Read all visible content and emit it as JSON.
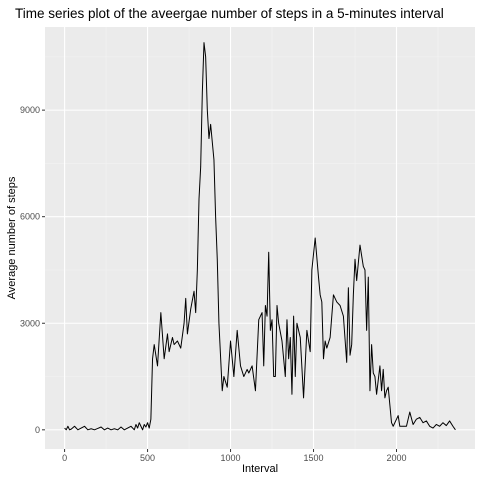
{
  "chart_data": {
    "type": "line",
    "title": "Time series plot of the aveergae number of steps in a 5-minutes interval",
    "xlabel": "Interval",
    "ylabel": "Average number of steps",
    "xlim": [
      -118,
      2473
    ],
    "ylim": [
      -540,
      11340
    ],
    "x_ticks": [
      0,
      500,
      1000,
      1500,
      2000
    ],
    "x_tick_labels": [
      "0",
      "500",
      "1000",
      "1500",
      "2000"
    ],
    "y_ticks": [
      0,
      3000,
      6000,
      9000
    ],
    "y_tick_labels": [
      "0",
      "3000",
      "6000",
      "9000"
    ],
    "grid": true,
    "legend": "none",
    "colors": {
      "panel": "#ebebeb",
      "grid_major": "#ffffff",
      "grid_minor": "#f4f4f4",
      "line": "#000000",
      "tick": "#333333"
    },
    "series": [
      {
        "x": [
          0,
          10,
          20,
          30,
          40,
          60,
          80,
          100,
          120,
          140,
          160,
          180,
          200,
          220,
          240,
          260,
          280,
          300,
          320,
          340,
          360,
          380,
          400,
          420,
          430,
          440,
          450,
          460,
          470,
          480,
          490,
          500,
          510,
          520,
          530,
          540,
          560,
          580,
          600,
          620,
          630,
          650,
          660,
          680,
          700,
          720,
          730,
          740,
          760,
          780,
          790,
          800,
          810,
          820,
          830,
          840,
          850,
          860,
          870,
          880,
          900,
          910,
          920,
          930,
          950,
          960,
          980,
          1000,
          1020,
          1040,
          1060,
          1080,
          1100,
          1110,
          1130,
          1150,
          1170,
          1190,
          1200,
          1210,
          1220,
          1230,
          1240,
          1250,
          1260,
          1270,
          1280,
          1290,
          1310,
          1320,
          1330,
          1340,
          1350,
          1360,
          1370,
          1380,
          1390,
          1400,
          1410,
          1420,
          1440,
          1460,
          1480,
          1490,
          1510,
          1530,
          1540,
          1550,
          1560,
          1570,
          1580,
          1600,
          1620,
          1640,
          1660,
          1680,
          1700,
          1710,
          1720,
          1730,
          1740,
          1750,
          1760,
          1780,
          1800,
          1810,
          1820,
          1830,
          1840,
          1850,
          1860,
          1870,
          1880,
          1900,
          1910,
          1920,
          1930,
          1940,
          1950,
          1960,
          1970,
          1980,
          2000,
          2010,
          2020,
          2040,
          2060,
          2080,
          2100,
          2120,
          2140,
          2160,
          2180,
          2200,
          2220,
          2240,
          2260,
          2280,
          2300,
          2320,
          2340,
          2355
        ],
        "y": [
          50,
          0,
          100,
          0,
          20,
          100,
          0,
          50,
          100,
          0,
          30,
          0,
          40,
          80,
          0,
          50,
          0,
          30,
          0,
          80,
          0,
          50,
          100,
          0,
          150,
          50,
          200,
          100,
          0,
          150,
          80,
          200,
          50,
          300,
          2000,
          2400,
          1800,
          3300,
          2000,
          2700,
          2200,
          2600,
          2400,
          2500,
          2300,
          3000,
          3700,
          2700,
          3400,
          3900,
          3300,
          4500,
          6500,
          7400,
          9500,
          10900,
          10500,
          9000,
          8200,
          8600,
          7600,
          6000,
          4800,
          3000,
          1100,
          1500,
          1200,
          2500,
          1500,
          2800,
          1800,
          1500,
          1700,
          1600,
          1800,
          1100,
          3100,
          3300,
          1800,
          3500,
          3200,
          5000,
          2800,
          3100,
          1500,
          1500,
          3500,
          3000,
          2500,
          2000,
          1500,
          3100,
          2000,
          2600,
          1000,
          3200,
          1500,
          3000,
          2800,
          2600,
          900,
          2800,
          2200,
          4500,
          5400,
          4300,
          3800,
          3600,
          2000,
          2500,
          2300,
          2600,
          3800,
          3600,
          3500,
          3200,
          1900,
          4000,
          2100,
          2400,
          3800,
          4800,
          4200,
          5200,
          4600,
          4500,
          2800,
          4300,
          1100,
          2400,
          1600,
          1500,
          1000,
          1800,
          1100,
          1700,
          900,
          1100,
          1200,
          700,
          200,
          100,
          300,
          400,
          100,
          100,
          100,
          500,
          150,
          300,
          350,
          200,
          250,
          100,
          50,
          150,
          100,
          200,
          120,
          250,
          100,
          0
        ]
      }
    ]
  }
}
